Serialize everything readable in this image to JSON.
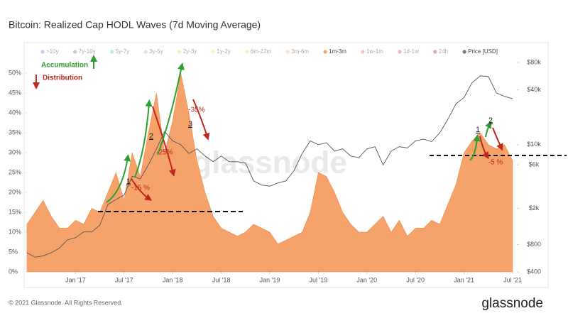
{
  "chart_data": {
    "type": "area",
    "title": "Bitcoin: Realized Cap HODL Waves (7d Moving Average)",
    "watermark": "glassnode",
    "footer": "© 2021 Glassnode. All Rights Reserved.",
    "brand": "glassnode",
    "legend": [
      {
        "name": ">10y",
        "color": "#6a5acd",
        "active": false
      },
      {
        "name": "7y-10y",
        "color": "#3a6ea5",
        "active": false
      },
      {
        "name": "5y-7y",
        "color": "#4fb3c8",
        "active": false
      },
      {
        "name": "3y-5y",
        "color": "#7cc79a",
        "active": false
      },
      {
        "name": "2y-3y",
        "color": "#b9d96b",
        "active": false
      },
      {
        "name": "1y-2y",
        "color": "#f1e36a",
        "active": false
      },
      {
        "name": "6m-12m",
        "color": "#f7cf6a",
        "active": false
      },
      {
        "name": "3m-6m",
        "color": "#f7b56a",
        "active": false
      },
      {
        "name": "1m-3m",
        "color": "#f5a36b",
        "active": true
      },
      {
        "name": "1w-1m",
        "color": "#e8663d",
        "active": false
      },
      {
        "name": "1d-1w",
        "color": "#c8243a",
        "active": false
      },
      {
        "name": "24h",
        "color": "#7a0f2b",
        "active": false
      },
      {
        "name": "Price [USD]",
        "color": "#777777",
        "active": true
      }
    ],
    "x": [
      "2016-07",
      "2016-08",
      "2016-09",
      "2016-10",
      "2016-11",
      "2016-12",
      "2017-01",
      "2017-02",
      "2017-03",
      "2017-04",
      "2017-05",
      "2017-06",
      "2017-07",
      "2017-08",
      "2017-09",
      "2017-10",
      "2017-11",
      "2017-12",
      "2018-01",
      "2018-02",
      "2018-03",
      "2018-04",
      "2018-05",
      "2018-06",
      "2018-07",
      "2018-08",
      "2018-09",
      "2018-10",
      "2018-11",
      "2018-12",
      "2019-01",
      "2019-02",
      "2019-03",
      "2019-04",
      "2019-05",
      "2019-06",
      "2019-07",
      "2019-08",
      "2019-09",
      "2019-10",
      "2019-11",
      "2019-12",
      "2020-01",
      "2020-02",
      "2020-03",
      "2020-04",
      "2020-05",
      "2020-06",
      "2020-07",
      "2020-08",
      "2020-09",
      "2020-10",
      "2020-11",
      "2020-12",
      "2021-01",
      "2021-02",
      "2021-03",
      "2021-04",
      "2021-05",
      "2021-06",
      "2021-07"
    ],
    "series": [
      {
        "name": "1m-3m",
        "color": "#f5a36b",
        "values": [
          12,
          15,
          18,
          14,
          11,
          11,
          13,
          12,
          16,
          15,
          20,
          25,
          18,
          30,
          24,
          35,
          45,
          30,
          38,
          50,
          40,
          28,
          20,
          14,
          11,
          10,
          9,
          10,
          12,
          11,
          10,
          7,
          8,
          9,
          10,
          15,
          25,
          24,
          20,
          15,
          12,
          10,
          10,
          12,
          14,
          10,
          13,
          9,
          11,
          11,
          13,
          12,
          17,
          22,
          30,
          33,
          35,
          32,
          31,
          32,
          28
        ]
      },
      {
        "name": "Price [USD]",
        "color": "#555555",
        "axis": "y2",
        "values": [
          650,
          580,
          600,
          650,
          730,
          900,
          950,
          1100,
          1100,
          1300,
          2200,
          2500,
          2800,
          4500,
          4200,
          6000,
          9000,
          14000,
          11000,
          10000,
          8000,
          9000,
          7500,
          6500,
          7500,
          6500,
          6500,
          6300,
          4000,
          3600,
          3500,
          3800,
          4000,
          5200,
          8000,
          11000,
          10000,
          10500,
          8500,
          9000,
          7500,
          7200,
          9000,
          9500,
          6000,
          8500,
          9500,
          9200,
          11000,
          11500,
          10800,
          13500,
          19000,
          28000,
          33000,
          48000,
          57000,
          56000,
          37000,
          34000,
          32000
        ]
      }
    ],
    "xlim": [
      "2016-07",
      "2021-07"
    ],
    "xticks": [
      {
        "value": "2017-01",
        "label": "Jan '17"
      },
      {
        "value": "2017-07",
        "label": "Jul '17"
      },
      {
        "value": "2018-01",
        "label": "Jan '18"
      },
      {
        "value": "2018-07",
        "label": "Jul '18"
      },
      {
        "value": "2019-01",
        "label": "Jan '19"
      },
      {
        "value": "2019-07",
        "label": "Jul '19"
      },
      {
        "value": "2020-01",
        "label": "Jan '20"
      },
      {
        "value": "2020-07",
        "label": "Jul '20"
      },
      {
        "value": "2021-01",
        "label": "Jan '21"
      },
      {
        "value": "2021-07",
        "label": "Jul '21"
      }
    ],
    "ylim": [
      0,
      52.7
    ],
    "yticks": [
      {
        "value": 0,
        "label": "0%"
      },
      {
        "value": 5,
        "label": "5%"
      },
      {
        "value": 10,
        "label": "10%"
      },
      {
        "value": 15,
        "label": "15%"
      },
      {
        "value": 20,
        "label": "20%"
      },
      {
        "value": 25,
        "label": "25%"
      },
      {
        "value": 30,
        "label": "30%"
      },
      {
        "value": 35,
        "label": "35%"
      },
      {
        "value": 40,
        "label": "40%"
      },
      {
        "value": 45,
        "label": "45%"
      },
      {
        "value": 50,
        "label": "50%"
      }
    ],
    "y2lim": [
      400,
      80000
    ],
    "y2log": true,
    "y2ticks": [
      {
        "value": 400,
        "label": "$400"
      },
      {
        "value": 800,
        "label": "$800"
      },
      {
        "value": 2000,
        "label": "$2k"
      },
      {
        "value": 6000,
        "label": "$6k"
      },
      {
        "value": 10000,
        "label": "$10k"
      },
      {
        "value": 40000,
        "label": "$40k"
      },
      {
        "value": 80000,
        "label": "$80k"
      }
    ],
    "annotations": [
      "Accumulation",
      "Distribution",
      "1",
      "-15 %",
      "2",
      "-25%",
      "3",
      "-35%",
      "1",
      "2",
      "-5 %"
    ]
  }
}
